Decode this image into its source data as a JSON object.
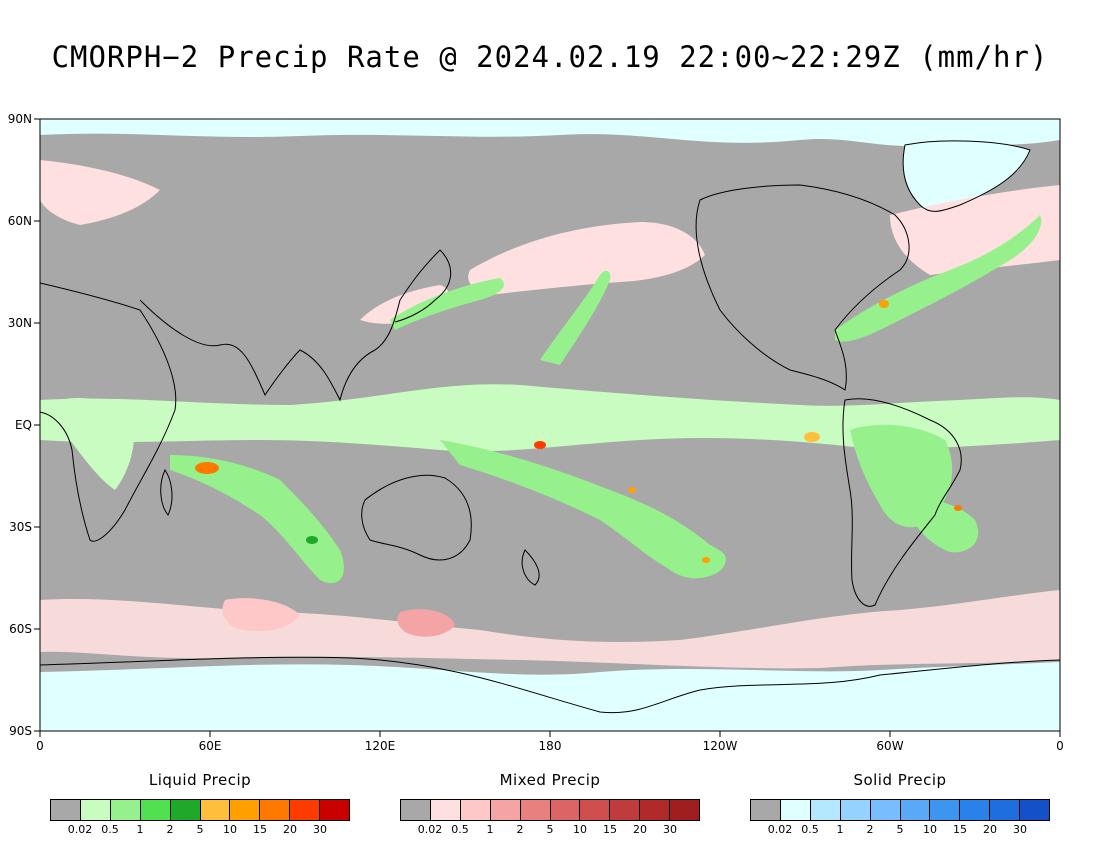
{
  "title": "CMORPH−2 Precip Rate @ 2024.02.19 22:00~22:29Z (mm/hr)",
  "map": {
    "lat_labels": [
      "90N",
      "60N",
      "30N",
      "EQ",
      "30S",
      "60S",
      "90S"
    ],
    "lon_labels": [
      "0",
      "60E",
      "120E",
      "180",
      "120W",
      "60W",
      "0"
    ],
    "colors": {
      "no_precip": "#a8a8a8",
      "ocean_polar_mixed": "#ffe0e0",
      "ice_solid": "#e0ffff",
      "coast": "#000000"
    }
  },
  "legends": [
    {
      "title": "Liquid Precip",
      "colors": [
        "#a8a8a8",
        "#c8fcc0",
        "#96f08c",
        "#50e050",
        "#1eaa28",
        "#ffbe3c",
        "#ffa000",
        "#ff7800",
        "#ff3c00",
        "#c80000"
      ],
      "ticks": [
        "0.02",
        "0.5",
        "1",
        "2",
        "5",
        "10",
        "15",
        "20",
        "30"
      ]
    },
    {
      "title": "Mixed Precip",
      "colors": [
        "#a8a8a8",
        "#ffe0e0",
        "#ffc8c8",
        "#f4a4a4",
        "#e88080",
        "#dc6464",
        "#d04e4e",
        "#c03c3c",
        "#b02a2a",
        "#a01e1e"
      ],
      "ticks": [
        "0.02",
        "0.5",
        "1",
        "2",
        "5",
        "10",
        "15",
        "20",
        "30"
      ]
    },
    {
      "title": "Solid Precip",
      "colors": [
        "#a8a8a8",
        "#e0ffff",
        "#b4e8ff",
        "#96d2ff",
        "#78beff",
        "#5aa8f8",
        "#3c96f0",
        "#2882ea",
        "#1e6ee0",
        "#1450c8"
      ],
      "ticks": [
        "0.02",
        "0.5",
        "1",
        "2",
        "5",
        "10",
        "15",
        "20",
        "30"
      ]
    }
  ]
}
